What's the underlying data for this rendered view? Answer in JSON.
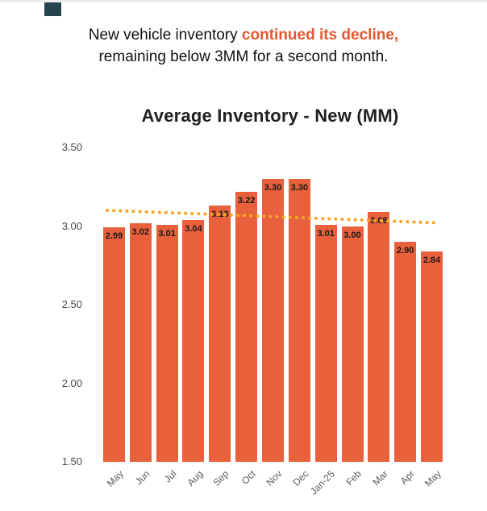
{
  "headline": {
    "prefix": "New vehicle inventory ",
    "highlight": "continued its decline,",
    "line2": "remaining below 3MM for a second month."
  },
  "chart_data": {
    "type": "bar",
    "title": "Average Inventory - New (MM)",
    "categories": [
      "May",
      "Jun",
      "Jul",
      "Aug",
      "Sep",
      "Oct",
      "Nov",
      "Dec",
      "Jan-25",
      "Feb",
      "Mar",
      "Apr",
      "May"
    ],
    "values": [
      2.99,
      3.02,
      3.01,
      3.04,
      3.13,
      3.22,
      3.3,
      3.3,
      3.01,
      3.0,
      3.09,
      2.9,
      2.84
    ],
    "bar_labels": [
      "2.99",
      "3.02",
      "3.01",
      "3.04",
      "3.13",
      "3.22",
      "3.30",
      "3.30",
      "3.01",
      "3.00",
      "3.09",
      "2.90",
      "2.84"
    ],
    "ylim": [
      1.5,
      3.5
    ],
    "yticks": [
      "3.50",
      "3.00",
      "2.50",
      "2.00",
      "1.50"
    ],
    "grid": false,
    "legend": "none",
    "trendline": {
      "start_value": 3.1,
      "end_value": 3.02,
      "style": "dotted"
    }
  },
  "colors": {
    "bar": "#E8603C",
    "accent": "#E4572E",
    "trend": "#F5A623",
    "bar_label": "#1A1A1A",
    "corner_mark": "#25444D"
  }
}
